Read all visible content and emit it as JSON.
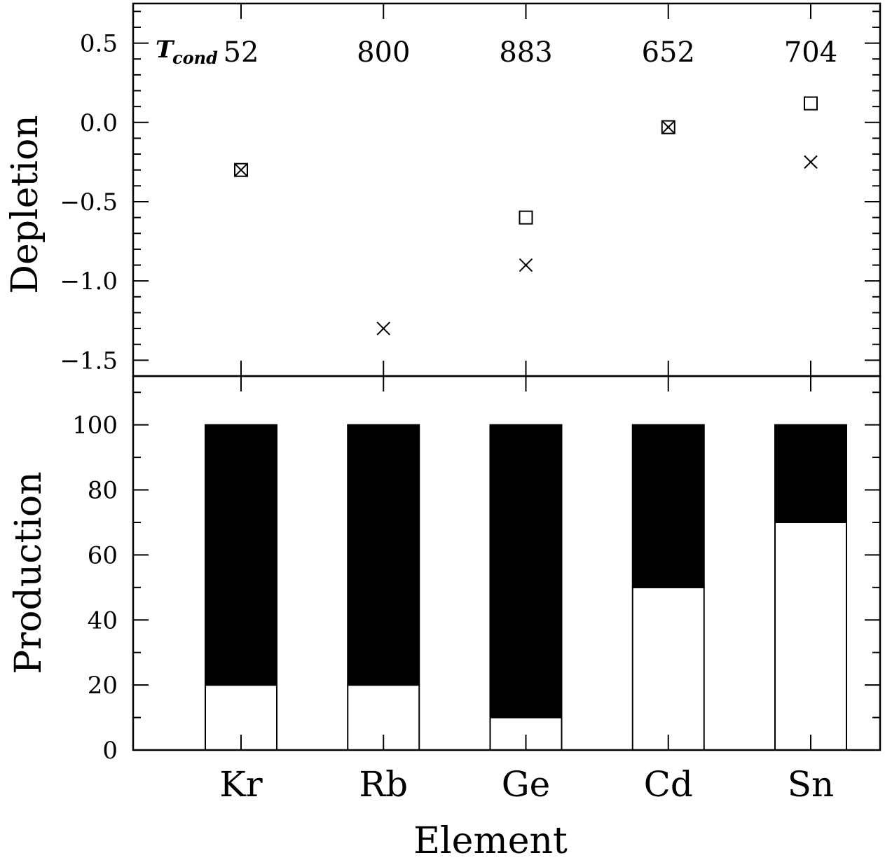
{
  "chart_data": [
    {
      "type": "scatter",
      "ylabel": "Depletion",
      "ylim": [
        -1.6,
        0.75
      ],
      "yticks": [
        "0.5",
        "0.0",
        "−0.5",
        "−1.0",
        "−1.5"
      ],
      "ytick_values": [
        0.5,
        0.0,
        -0.5,
        -1.0,
        -1.5
      ],
      "categories": [
        "Kr",
        "Rb",
        "Ge",
        "Cd",
        "Sn"
      ],
      "tcond_label": "T",
      "tcond_sub": "cond",
      "tcond": [
        "52",
        "800",
        "883",
        "652",
        "704"
      ],
      "series": [
        {
          "marker": "square",
          "values": [
            -0.3,
            null,
            -0.6,
            -0.03,
            0.12
          ]
        },
        {
          "marker": "cross",
          "values": [
            -0.3,
            -1.3,
            -0.9,
            -0.03,
            -0.25
          ]
        }
      ],
      "grid": false
    },
    {
      "type": "bar",
      "stacked": true,
      "ylabel": "Production",
      "xlabel": "Element",
      "ylim": [
        0,
        115
      ],
      "yticks": [
        "0",
        "20",
        "40",
        "60",
        "80",
        "100"
      ],
      "ytick_values": [
        0,
        20,
        40,
        60,
        80,
        100
      ],
      "categories": [
        "Kr",
        "Rb",
        "Ge",
        "Cd",
        "Sn"
      ],
      "series": [
        {
          "fill": "#ffffff",
          "values": [
            20,
            20,
            10,
            50,
            70
          ]
        },
        {
          "fill": "#000000",
          "values": [
            80,
            80,
            90,
            50,
            30
          ]
        }
      ],
      "grid": false
    }
  ]
}
